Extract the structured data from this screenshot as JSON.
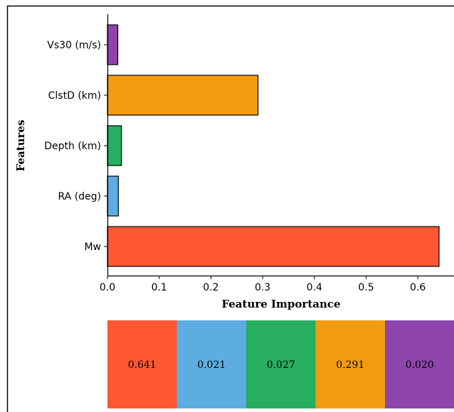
{
  "chart_data": {
    "type": "bar",
    "orientation": "horizontal",
    "categories": [
      "Vs30 (m/s)",
      "ClstD (km)",
      "Depth (km)",
      "RA (deg)",
      "Mw"
    ],
    "values": [
      0.02,
      0.291,
      0.027,
      0.021,
      0.641
    ],
    "colors": [
      "#8e44ad",
      "#f39c12",
      "#27ae60",
      "#5dade2",
      "#ff5733"
    ],
    "xlabel": "Feature Importance",
    "ylabel": "Features",
    "xlim": [
      0.0,
      0.66
    ],
    "xticks": [
      "0.0",
      "0.1",
      "0.2",
      "0.3",
      "0.4",
      "0.5",
      "0.6"
    ],
    "grid": false,
    "legend": "none",
    "table": {
      "cells": [
        "0.641",
        "0.021",
        "0.027",
        "0.291",
        "0.020"
      ],
      "colors": [
        "#ff5733",
        "#5dade2",
        "#27ae60",
        "#f39c12",
        "#8e44ad"
      ]
    }
  }
}
